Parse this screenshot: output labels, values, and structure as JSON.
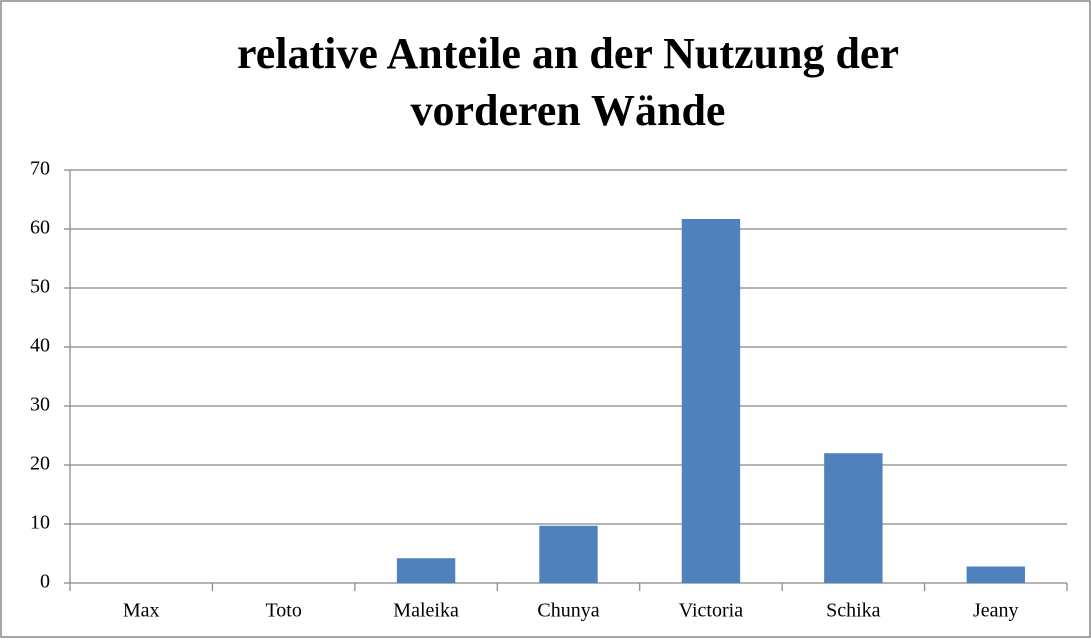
{
  "chart_data": {
    "type": "bar",
    "title": [
      "relative Anteile an der Nutzung der",
      "vorderen Wände"
    ],
    "categories": [
      "Max",
      "Toto",
      "Maleika",
      "Chunya",
      "Victoria",
      "Schika",
      "Jeany"
    ],
    "values": [
      0,
      0,
      4.2,
      9.7,
      61.7,
      22,
      2.8
    ],
    "color": "#4f81bd",
    "ylim": [
      0,
      70
    ],
    "yticks": [
      0,
      10,
      20,
      30,
      40,
      50,
      60,
      70
    ],
    "grid": true
  }
}
